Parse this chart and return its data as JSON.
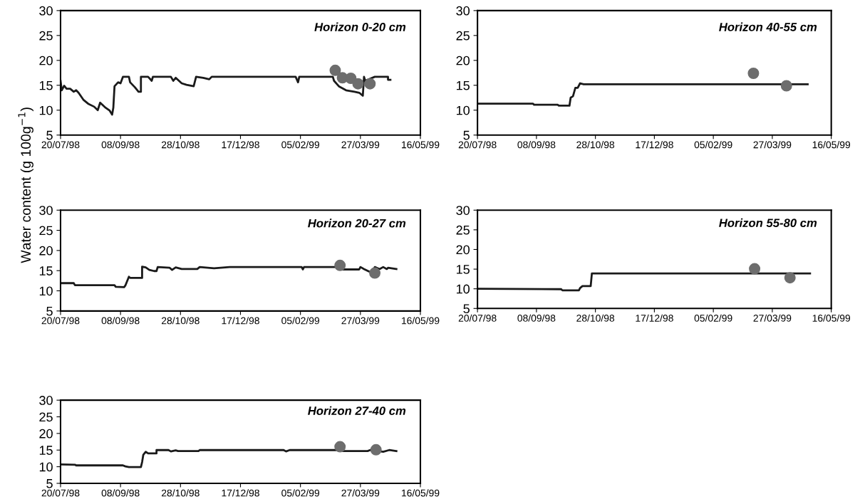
{
  "chart_data": [
    {
      "type": "line",
      "title": "Horizon 0-20 cm",
      "xlim": [
        "1998-07-20",
        "1999-05-16"
      ],
      "ylim": [
        5,
        30
      ],
      "yticks": [
        5,
        10,
        15,
        20,
        25,
        30
      ],
      "xticks": [
        {
          "value": "1998-07-20",
          "label": "20/07/98"
        },
        {
          "value": "1998-09-08",
          "label": "08/09/98"
        },
        {
          "value": "1998-10-28",
          "label": "28/10/98"
        },
        {
          "value": "1998-12-17",
          "label": "17/12/98"
        },
        {
          "value": "1999-02-05",
          "label": "05/02/99"
        },
        {
          "value": "1999-03-27",
          "label": "27/03/99"
        },
        {
          "value": "1999-05-16",
          "label": "16/05/99"
        }
      ],
      "grid": false,
      "series": [
        {
          "color": "#1a1a1a",
          "marker": "none",
          "x": [
            "1998-07-20",
            "1998-07-21",
            "1998-07-23",
            "1998-07-25",
            "1998-07-28",
            "1998-07-31",
            "1998-08-02",
            "1998-08-04",
            "1998-08-08",
            "1998-08-12",
            "1998-08-17",
            "1998-08-20",
            "1998-08-22",
            "1998-08-26",
            "1998-08-30",
            "1998-09-01",
            "1998-09-02",
            "1998-09-03",
            "1998-09-06",
            "1998-09-08",
            "1998-09-10",
            "1998-09-15",
            "1998-09-16",
            "1998-09-20",
            "1998-09-23",
            "1998-09-25",
            "1998-09-25",
            "1998-10-01",
            "1998-10-04",
            "1998-10-05",
            "1998-10-20",
            "1998-10-22",
            "1998-10-24",
            "1998-10-29",
            "1998-11-02",
            "1998-11-08",
            "1998-11-10",
            "1998-11-16",
            "1998-11-21",
            "1998-11-23",
            "1999-02-01",
            "1999-02-03",
            "1999-02-04",
            "1999-03-04",
            "1999-03-05",
            "1999-03-09",
            "1999-03-15",
            "1999-03-22",
            "1999-03-26",
            "1999-03-29",
            "1999-03-30",
            "1999-03-31",
            "1999-04-08",
            "1999-04-19",
            "1999-04-19",
            "1999-04-21"
          ],
          "values": [
            15.9,
            14.0,
            14.9,
            14.3,
            14.3,
            13.7,
            14.0,
            13.5,
            12.1,
            11.3,
            10.7,
            10.0,
            11.5,
            10.6,
            9.9,
            9.1,
            10.5,
            14.8,
            15.6,
            15.4,
            16.7,
            16.7,
            15.6,
            14.6,
            13.7,
            13.7,
            16.7,
            16.7,
            15.9,
            16.7,
            16.7,
            15.9,
            16.5,
            15.4,
            15.1,
            14.8,
            16.7,
            16.5,
            16.2,
            16.7,
            16.7,
            15.6,
            16.7,
            16.7,
            15.9,
            14.8,
            14.0,
            13.7,
            13.5,
            12.9,
            16.7,
            15.9,
            16.7,
            16.7,
            16.1,
            16.1
          ]
        },
        {
          "type": "scatter",
          "color": "#6d6d6d",
          "marker": "circle",
          "x": [
            "1999-03-06",
            "1999-03-12",
            "1999-03-19",
            "1999-03-25",
            "1999-04-04"
          ],
          "values": [
            18.0,
            16.5,
            16.4,
            15.3,
            15.3
          ]
        }
      ]
    },
    {
      "type": "line",
      "title": "Horizon 40-55 cm",
      "xlim": [
        "1998-07-20",
        "1999-05-16"
      ],
      "ylim": [
        5,
        30
      ],
      "yticks": [
        5,
        10,
        15,
        20,
        25,
        30
      ],
      "xticks": [
        {
          "value": "1998-07-20",
          "label": "20/07/98"
        },
        {
          "value": "1998-09-08",
          "label": "08/09/98"
        },
        {
          "value": "1998-10-28",
          "label": "28/10/98"
        },
        {
          "value": "1998-12-17",
          "label": "17/12/98"
        },
        {
          "value": "1999-02-05",
          "label": "05/02/99"
        },
        {
          "value": "1999-03-27",
          "label": "27/03/99"
        },
        {
          "value": "1999-05-16",
          "label": "16/05/99"
        }
      ],
      "grid": false,
      "series": [
        {
          "color": "#1a1a1a",
          "marker": "none",
          "x": [
            "1998-07-20",
            "1998-09-05",
            "1998-09-06",
            "1998-09-26",
            "1998-09-27",
            "1998-10-06",
            "1998-10-07",
            "1998-10-09",
            "1998-10-11",
            "1998-10-13",
            "1998-10-15",
            "1998-10-18",
            "1999-04-26"
          ],
          "values": [
            11.3,
            11.3,
            11.1,
            11.1,
            10.9,
            10.9,
            12.5,
            12.8,
            14.5,
            14.5,
            15.4,
            15.2,
            15.2
          ]
        },
        {
          "type": "scatter",
          "color": "#6d6d6d",
          "marker": "circle",
          "x": [
            "1999-03-11",
            "1999-04-08"
          ],
          "values": [
            17.4,
            14.9
          ]
        }
      ]
    },
    {
      "type": "line",
      "title": "Horizon 20-27 cm",
      "ylabel": "Water content (g 100g$^{−1}$)",
      "xlim": [
        "1998-07-20",
        "1999-05-16"
      ],
      "ylim": [
        5,
        30
      ],
      "yticks": [
        5,
        10,
        15,
        20,
        25,
        30
      ],
      "xticks": [
        {
          "value": "1998-07-20",
          "label": "20/07/98"
        },
        {
          "value": "1998-09-08",
          "label": "08/09/98"
        },
        {
          "value": "1998-10-28",
          "label": "28/10/98"
        },
        {
          "value": "1998-12-17",
          "label": "17/12/98"
        },
        {
          "value": "1999-02-05",
          "label": "05/02/99"
        },
        {
          "value": "1999-03-27",
          "label": "27/03/99"
        },
        {
          "value": "1999-05-16",
          "label": "16/05/99"
        }
      ],
      "grid": false,
      "series": [
        {
          "color": "#1a1a1a",
          "marker": "none",
          "x": [
            "1998-07-20",
            "1998-07-31",
            "1998-08-01",
            "1998-09-03",
            "1998-09-04",
            "1998-09-11",
            "1998-09-12",
            "1998-09-15",
            "1998-09-16",
            "1998-09-26",
            "1998-09-26",
            "1998-09-29",
            "1998-10-02",
            "1998-10-06",
            "1998-10-08",
            "1998-10-09",
            "1998-10-19",
            "1998-10-21",
            "1998-10-24",
            "1998-10-29",
            "1998-11-11",
            "1998-11-13",
            "1998-11-25",
            "1998-12-08",
            "1999-02-06",
            "1999-02-07",
            "1999-02-08",
            "1999-03-09",
            "1999-03-12",
            "1999-03-26",
            "1999-03-27",
            "1999-03-30",
            "1999-04-03",
            "1999-04-06",
            "1999-04-08",
            "1999-04-12",
            "1999-04-15",
            "1999-04-18",
            "1999-04-19",
            "1999-04-26"
          ],
          "values": [
            11.9,
            11.9,
            11.4,
            11.4,
            11.0,
            10.9,
            11.3,
            13.5,
            13.2,
            13.2,
            16.0,
            15.8,
            15.2,
            14.9,
            14.9,
            15.9,
            15.7,
            15.2,
            15.8,
            15.4,
            15.4,
            15.9,
            15.6,
            15.9,
            15.9,
            15.3,
            15.9,
            15.9,
            15.3,
            15.3,
            15.9,
            15.4,
            14.8,
            14.8,
            15.9,
            15.4,
            15.9,
            15.4,
            15.7,
            15.4
          ]
        },
        {
          "type": "scatter",
          "color": "#6d6d6d",
          "marker": "circle",
          "x": [
            "1999-03-10",
            "1999-04-08"
          ],
          "values": [
            16.3,
            14.4
          ]
        }
      ]
    },
    {
      "type": "line",
      "title": "Horizon 55-80 cm",
      "xlim": [
        "1998-07-20",
        "1999-05-16"
      ],
      "ylim": [
        5,
        30
      ],
      "yticks": [
        5,
        10,
        15,
        20,
        25,
        30
      ],
      "xticks": [
        {
          "value": "1998-07-20",
          "label": "20/07/98"
        },
        {
          "value": "1998-09-08",
          "label": "08/09/98"
        },
        {
          "value": "1998-10-28",
          "label": "28/10/98"
        },
        {
          "value": "1998-12-17",
          "label": "17/12/98"
        },
        {
          "value": "1999-02-05",
          "label": "05/02/99"
        },
        {
          "value": "1999-03-27",
          "label": "27/03/99"
        },
        {
          "value": "1999-05-16",
          "label": "16/05/99"
        }
      ],
      "grid": false,
      "series": [
        {
          "color": "#1a1a1a",
          "marker": "none",
          "x": [
            "1998-07-20",
            "1998-09-29",
            "1998-09-30",
            "1998-10-14",
            "1998-10-15",
            "1998-10-17",
            "1998-10-24",
            "1998-10-25",
            "1999-04-28"
          ],
          "values": [
            10.0,
            9.9,
            9.6,
            9.6,
            10.2,
            10.7,
            10.7,
            13.9,
            13.9
          ]
        },
        {
          "type": "scatter",
          "color": "#6d6d6d",
          "marker": "circle",
          "x": [
            "1999-03-12",
            "1999-04-11"
          ],
          "values": [
            15.1,
            12.8
          ]
        }
      ]
    },
    {
      "type": "line",
      "title": "Horizon 27-40 cm",
      "xlim": [
        "1998-07-20",
        "1999-05-16"
      ],
      "ylim": [
        5,
        30
      ],
      "yticks": [
        5,
        10,
        15,
        20,
        25,
        30
      ],
      "xticks": [
        {
          "value": "1998-07-20",
          "label": "20/07/98"
        },
        {
          "value": "1998-09-08",
          "label": "08/09/98"
        },
        {
          "value": "1998-10-28",
          "label": "28/10/98"
        },
        {
          "value": "1998-12-17",
          "label": "17/12/98"
        },
        {
          "value": "1999-02-05",
          "label": "05/02/99"
        },
        {
          "value": "1999-03-27",
          "label": "27/03/99"
        },
        {
          "value": "1999-05-16",
          "label": "16/05/99"
        }
      ],
      "grid": false,
      "series": [
        {
          "color": "#1a1a1a",
          "marker": "none",
          "x": [
            "1998-07-20",
            "1998-08-01",
            "1998-08-02",
            "1998-09-10",
            "1998-09-12",
            "1998-09-15",
            "1998-09-25",
            "1998-09-26",
            "1998-09-27",
            "1998-09-29",
            "1998-10-01",
            "1998-10-08",
            "1998-10-08",
            "1998-10-18",
            "1998-10-20",
            "1998-10-24",
            "1998-10-26",
            "1998-11-12",
            "1998-11-13",
            "1999-01-22",
            "1999-01-24",
            "1999-01-27",
            "1999-03-06",
            "1999-03-12",
            "1999-04-02",
            "1999-04-04",
            "1999-04-15",
            "1999-04-20",
            "1999-04-26"
          ],
          "values": [
            10.7,
            10.6,
            10.4,
            10.4,
            10.1,
            9.9,
            9.9,
            11.4,
            13.6,
            14.5,
            14.0,
            14.0,
            15.0,
            15.0,
            14.6,
            14.9,
            14.7,
            14.7,
            15.0,
            15.0,
            14.6,
            15.0,
            15.0,
            14.7,
            14.7,
            15.0,
            14.5,
            15.0,
            14.7
          ]
        },
        {
          "type": "scatter",
          "color": "#6d6d6d",
          "marker": "circle",
          "x": [
            "1999-03-10",
            "1999-04-09"
          ],
          "values": [
            16.0,
            15.1
          ]
        }
      ]
    }
  ]
}
